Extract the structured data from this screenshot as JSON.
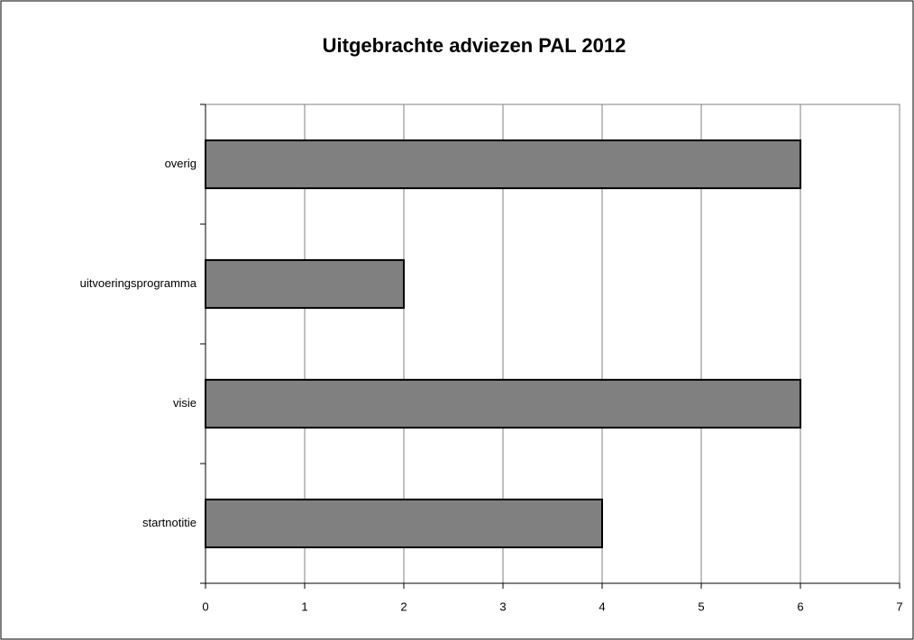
{
  "chart_data": {
    "type": "barh",
    "title": "Uitgebrachte adviezen PAL 2012",
    "categories": [
      "startnotitie",
      "visie",
      "uitvoeringsprogramma",
      "overig"
    ],
    "values": [
      4,
      6,
      2,
      6
    ],
    "color": "#808080",
    "xlim": [
      0,
      7
    ],
    "xticks": [
      0,
      1,
      2,
      3,
      4,
      5,
      6,
      7
    ],
    "grid": true
  }
}
